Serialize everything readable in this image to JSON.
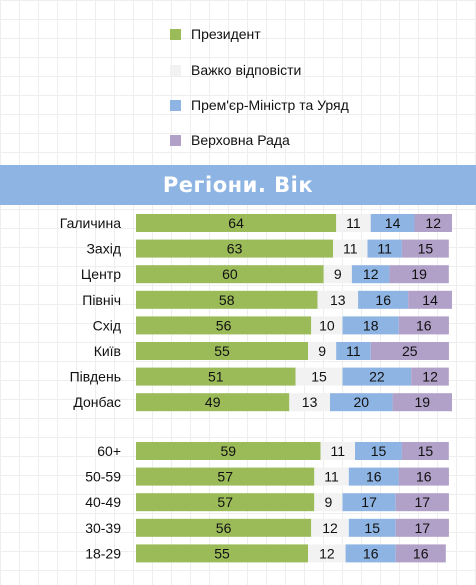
{
  "colors": {
    "president": "#9bbb59",
    "hard_to_say": "#f2f2f2",
    "pm_govt": "#8db4e2",
    "parliament": "#b1a0c7",
    "banner": "#8db4e2"
  },
  "banner": {
    "title": "Регіони. Вік"
  },
  "chart_data": {
    "type": "bar",
    "orientation": "horizontal",
    "stacked": true,
    "title": "Регіони. Вік",
    "legend_position": "top",
    "categories": [
      "Галичина",
      "Захід",
      "Центр",
      "Північ",
      "Схід",
      "Київ",
      "Південь",
      "Донбас",
      "60+",
      "50-59",
      "40-49",
      "30-39",
      "18-29"
    ],
    "groups": [
      [
        "Галичина",
        "Захід",
        "Центр",
        "Північ",
        "Схід",
        "Київ",
        "Південь",
        "Донбас"
      ],
      [
        "60+",
        "50-59",
        "40-49",
        "30-39",
        "18-29"
      ]
    ],
    "series": [
      {
        "name": "Президент",
        "color": "#9bbb59",
        "values": [
          64,
          63,
          60,
          58,
          56,
          55,
          51,
          49,
          59,
          57,
          57,
          56,
          55
        ]
      },
      {
        "name": "Важко відповісти",
        "color": "#f2f2f2",
        "values": [
          11,
          11,
          9,
          13,
          10,
          9,
          15,
          13,
          11,
          11,
          9,
          12,
          12
        ]
      },
      {
        "name": "Прем'єр-Міністр та Уряд",
        "color": "#8db4e2",
        "values": [
          14,
          11,
          12,
          16,
          18,
          11,
          22,
          20,
          15,
          16,
          17,
          15,
          16
        ]
      },
      {
        "name": "Верховна Рада",
        "color": "#b1a0c7",
        "values": [
          12,
          15,
          19,
          14,
          16,
          25,
          12,
          19,
          15,
          16,
          17,
          17,
          16
        ]
      }
    ],
    "xlim": [
      0,
      100
    ]
  }
}
